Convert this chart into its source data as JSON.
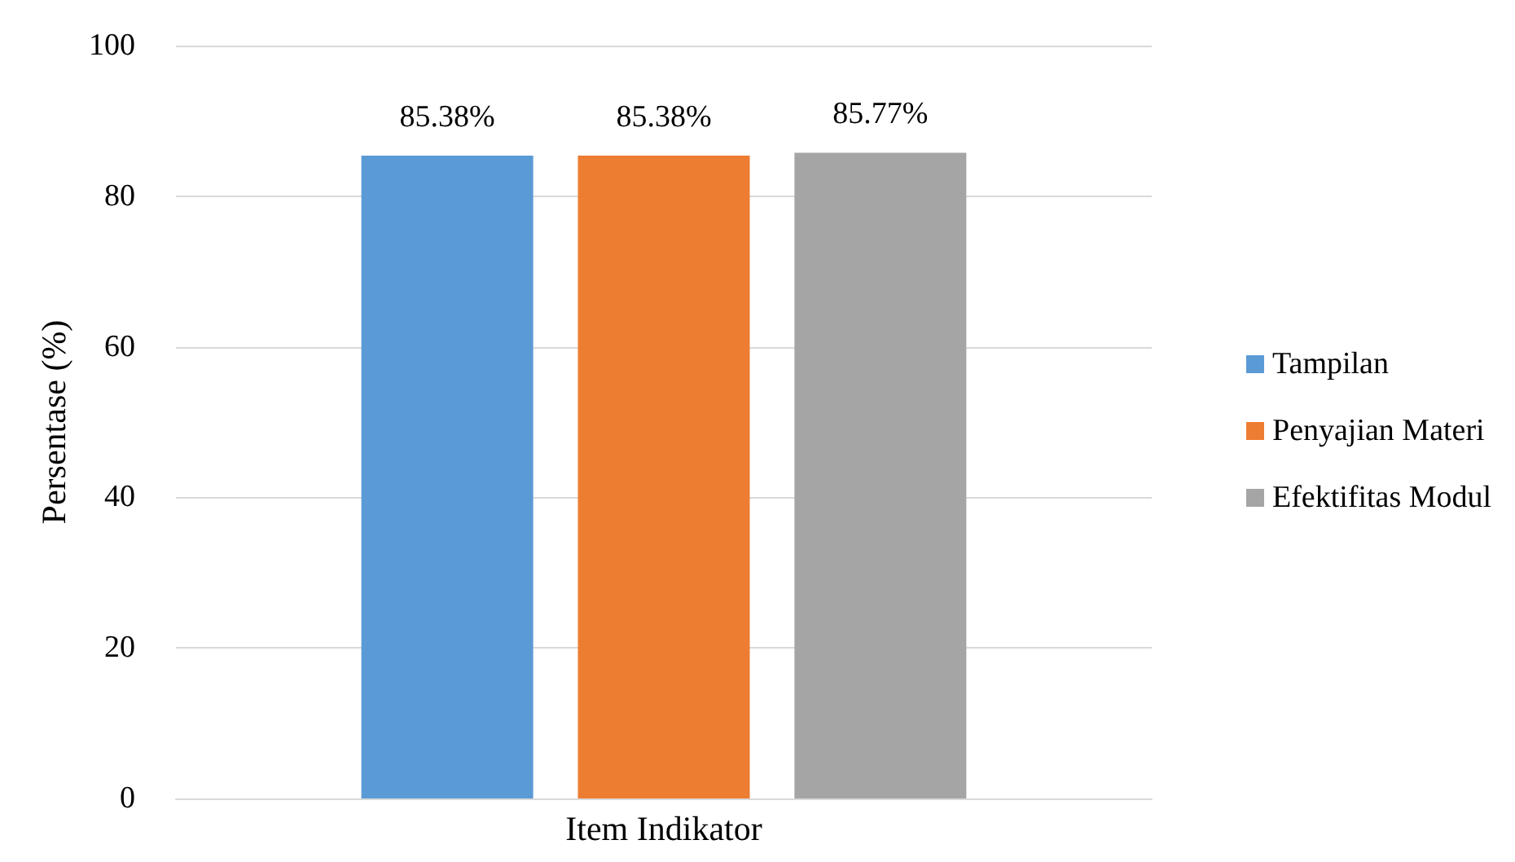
{
  "chart_data": {
    "type": "bar",
    "categories": [
      "Item Indikator"
    ],
    "ylabel": "Persentase (%)",
    "series": [
      {
        "name": "Tampilan",
        "color": "#5b9bd5",
        "values": [
          85.38
        ],
        "value_labels": [
          "85.38%"
        ]
      },
      {
        "name": "Penyajian Materi",
        "color": "#ed7d31",
        "values": [
          85.38
        ],
        "value_labels": [
          "85.38%"
        ]
      },
      {
        "name": "Efektifitas Modul",
        "color": "#a5a5a5",
        "values": [
          85.77
        ],
        "value_labels": [
          "85.77%"
        ]
      }
    ],
    "ylim": [
      0,
      100
    ],
    "yticks": [
      0,
      20,
      40,
      60,
      80,
      100
    ],
    "grid": "y",
    "legend": "right"
  }
}
